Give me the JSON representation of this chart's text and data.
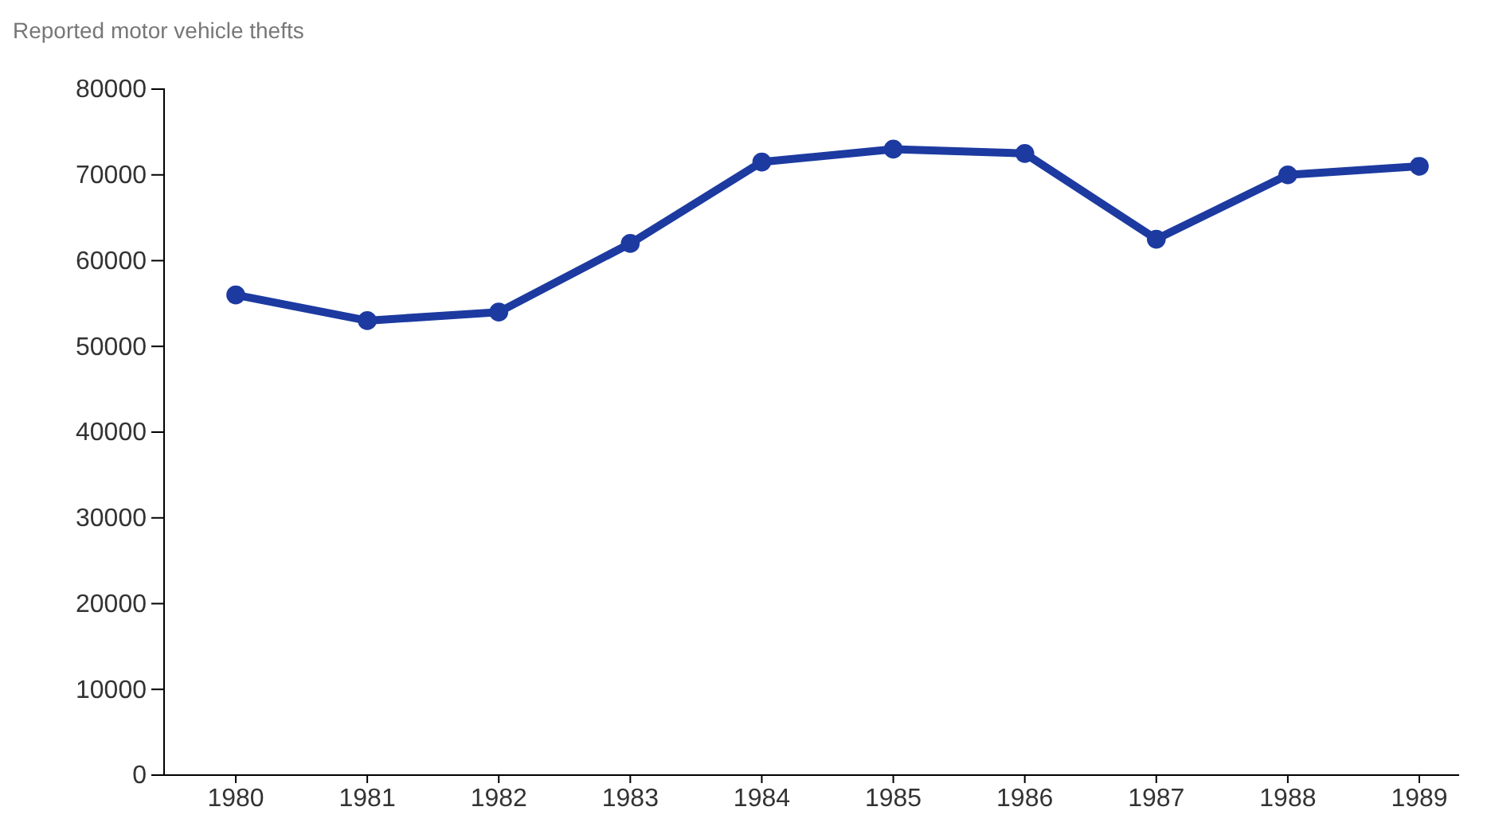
{
  "chart_data": {
    "type": "line",
    "title": "Reported motor vehicle thefts",
    "categories": [
      "1980",
      "1981",
      "1982",
      "1983",
      "1984",
      "1985",
      "1986",
      "1987",
      "1988",
      "1989"
    ],
    "series": [
      {
        "color": "#1c3aa0",
        "values": [
          56000,
          53000,
          54000,
          62000,
          71500,
          73000,
          72500,
          62500,
          70000,
          71000
        ]
      }
    ],
    "ylim": [
      0,
      80000
    ],
    "yticks": [
      0,
      10000,
      20000,
      30000,
      40000,
      50000,
      60000,
      70000,
      80000
    ],
    "grid": false,
    "marker": "circle",
    "line_style": "solid"
  }
}
